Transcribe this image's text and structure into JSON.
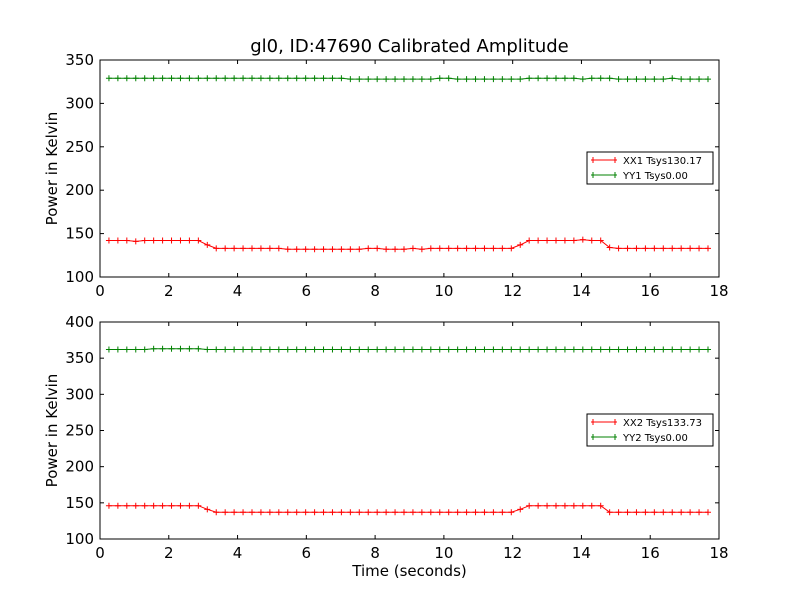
{
  "chart_data": [
    {
      "type": "line",
      "title": "gl0, ID:47690 Calibrated Amplitude",
      "xlabel": "",
      "ylabel": "Power in Kelvin",
      "xlim": [
        0,
        18
      ],
      "ylim": [
        100,
        350
      ],
      "xticks": [
        "0",
        "2",
        "4",
        "6",
        "8",
        "10",
        "12",
        "14",
        "16",
        "18"
      ],
      "yticks": [
        "100",
        "150",
        "200",
        "250",
        "300",
        "350"
      ],
      "grid": false,
      "legend_position": "center-right",
      "series": [
        {
          "name": "XX1 Tsys130.17",
          "color": "#ff0000",
          "x": [
            0.26,
            0.52,
            0.78,
            1.04,
            1.3,
            1.56,
            1.82,
            2.08,
            2.34,
            2.6,
            2.86,
            3.12,
            3.38,
            3.64,
            3.9,
            4.16,
            4.42,
            4.68,
            4.94,
            5.2,
            5.46,
            5.72,
            5.98,
            6.24,
            6.5,
            6.76,
            7.02,
            7.28,
            7.54,
            7.8,
            8.06,
            8.32,
            8.58,
            8.84,
            9.1,
            9.36,
            9.62,
            9.88,
            10.14,
            10.4,
            10.66,
            10.92,
            11.18,
            11.44,
            11.7,
            11.96,
            12.22,
            12.48,
            12.74,
            13.0,
            13.26,
            13.52,
            13.78,
            14.04,
            14.3,
            14.56,
            14.82,
            15.08,
            15.34,
            15.6,
            15.86,
            16.12,
            16.38,
            16.64,
            16.9,
            17.16,
            17.42,
            17.68
          ],
          "values": [
            142,
            142,
            142,
            141,
            142,
            142,
            142,
            142,
            142,
            142,
            142,
            137,
            133,
            133,
            133,
            133,
            133,
            133,
            133,
            133,
            132,
            132,
            132,
            132,
            132,
            132,
            132,
            132,
            132,
            133,
            133,
            132,
            132,
            132,
            133,
            132,
            133,
            133,
            133,
            133,
            133,
            133,
            133,
            133,
            133,
            133,
            137,
            142,
            142,
            142,
            142,
            142,
            142,
            143,
            142,
            142,
            134,
            133,
            133,
            133,
            133,
            133,
            133,
            133,
            133,
            133,
            133,
            133
          ]
        },
        {
          "name": "YY1 Tsys0.00",
          "color": "#008000",
          "x": [
            0.26,
            0.52,
            0.78,
            1.04,
            1.3,
            1.56,
            1.82,
            2.08,
            2.34,
            2.6,
            2.86,
            3.12,
            3.38,
            3.64,
            3.9,
            4.16,
            4.42,
            4.68,
            4.94,
            5.2,
            5.46,
            5.72,
            5.98,
            6.24,
            6.5,
            6.76,
            7.02,
            7.28,
            7.54,
            7.8,
            8.06,
            8.32,
            8.58,
            8.84,
            9.1,
            9.36,
            9.62,
            9.88,
            10.14,
            10.4,
            10.66,
            10.92,
            11.18,
            11.44,
            11.7,
            11.96,
            12.22,
            12.48,
            12.74,
            13.0,
            13.26,
            13.52,
            13.78,
            14.04,
            14.3,
            14.56,
            14.82,
            15.08,
            15.34,
            15.6,
            15.86,
            16.12,
            16.38,
            16.64,
            16.9,
            17.16,
            17.42,
            17.68
          ],
          "values": [
            329,
            329,
            329,
            329,
            329,
            329,
            329,
            329,
            329,
            329,
            329,
            329,
            329,
            329,
            329,
            329,
            329,
            329,
            329,
            329,
            329,
            329,
            329,
            329,
            329,
            329,
            329,
            328,
            328,
            328,
            328,
            328,
            328,
            328,
            328,
            328,
            328,
            329,
            329,
            328,
            328,
            328,
            328,
            328,
            328,
            328,
            328,
            329,
            329,
            329,
            329,
            329,
            329,
            328,
            329,
            329,
            329,
            328,
            328,
            328,
            328,
            328,
            328,
            329,
            328,
            328,
            328,
            328
          ]
        }
      ]
    },
    {
      "type": "line",
      "title": "",
      "xlabel": "Time (seconds)",
      "ylabel": "Power in Kelvin",
      "xlim": [
        0,
        18
      ],
      "ylim": [
        100,
        400
      ],
      "xticks": [
        "0",
        "2",
        "4",
        "6",
        "8",
        "10",
        "12",
        "14",
        "16",
        "18"
      ],
      "yticks": [
        "100",
        "150",
        "200",
        "250",
        "300",
        "350",
        "400"
      ],
      "grid": false,
      "legend_position": "center-right",
      "series": [
        {
          "name": "XX2 Tsys133.73",
          "color": "#ff0000",
          "x": [
            0.26,
            0.52,
            0.78,
            1.04,
            1.3,
            1.56,
            1.82,
            2.08,
            2.34,
            2.6,
            2.86,
            3.12,
            3.38,
            3.64,
            3.9,
            4.16,
            4.42,
            4.68,
            4.94,
            5.2,
            5.46,
            5.72,
            5.98,
            6.24,
            6.5,
            6.76,
            7.02,
            7.28,
            7.54,
            7.8,
            8.06,
            8.32,
            8.58,
            8.84,
            9.1,
            9.36,
            9.62,
            9.88,
            10.14,
            10.4,
            10.66,
            10.92,
            11.18,
            11.44,
            11.7,
            11.96,
            12.22,
            12.48,
            12.74,
            13.0,
            13.26,
            13.52,
            13.78,
            14.04,
            14.3,
            14.56,
            14.82,
            15.08,
            15.34,
            15.6,
            15.86,
            16.12,
            16.38,
            16.64,
            16.9,
            17.16,
            17.42,
            17.68
          ],
          "values": [
            146,
            146,
            146,
            146,
            146,
            146,
            146,
            146,
            146,
            146,
            146,
            141,
            137,
            137,
            137,
            137,
            137,
            137,
            137,
            137,
            137,
            137,
            137,
            137,
            137,
            137,
            137,
            137,
            137,
            137,
            137,
            137,
            137,
            137,
            137,
            137,
            137,
            137,
            137,
            137,
            137,
            137,
            137,
            137,
            137,
            137,
            141,
            146,
            146,
            146,
            146,
            146,
            146,
            146,
            146,
            146,
            137,
            137,
            137,
            137,
            137,
            137,
            137,
            137,
            137,
            137,
            137,
            137
          ]
        },
        {
          "name": "YY2 Tsys0.00",
          "color": "#008000",
          "x": [
            0.26,
            0.52,
            0.78,
            1.04,
            1.3,
            1.56,
            1.82,
            2.08,
            2.34,
            2.6,
            2.86,
            3.12,
            3.38,
            3.64,
            3.9,
            4.16,
            4.42,
            4.68,
            4.94,
            5.2,
            5.46,
            5.72,
            5.98,
            6.24,
            6.5,
            6.76,
            7.02,
            7.28,
            7.54,
            7.8,
            8.06,
            8.32,
            8.58,
            8.84,
            9.1,
            9.36,
            9.62,
            9.88,
            10.14,
            10.4,
            10.66,
            10.92,
            11.18,
            11.44,
            11.7,
            11.96,
            12.22,
            12.48,
            12.74,
            13.0,
            13.26,
            13.52,
            13.78,
            14.04,
            14.3,
            14.56,
            14.82,
            15.08,
            15.34,
            15.6,
            15.86,
            16.12,
            16.38,
            16.64,
            16.9,
            17.16,
            17.42,
            17.68
          ],
          "values": [
            362,
            362,
            362,
            362,
            362,
            363,
            363,
            363,
            363,
            363,
            363,
            362,
            362,
            362,
            362,
            362,
            362,
            362,
            362,
            362,
            362,
            362,
            362,
            362,
            362,
            362,
            362,
            362,
            362,
            362,
            362,
            362,
            362,
            362,
            362,
            362,
            362,
            362,
            362,
            362,
            362,
            362,
            362,
            362,
            362,
            362,
            362,
            362,
            362,
            362,
            362,
            362,
            362,
            362,
            362,
            362,
            362,
            362,
            362,
            362,
            362,
            362,
            362,
            362,
            362,
            362,
            362,
            362
          ]
        }
      ]
    }
  ]
}
